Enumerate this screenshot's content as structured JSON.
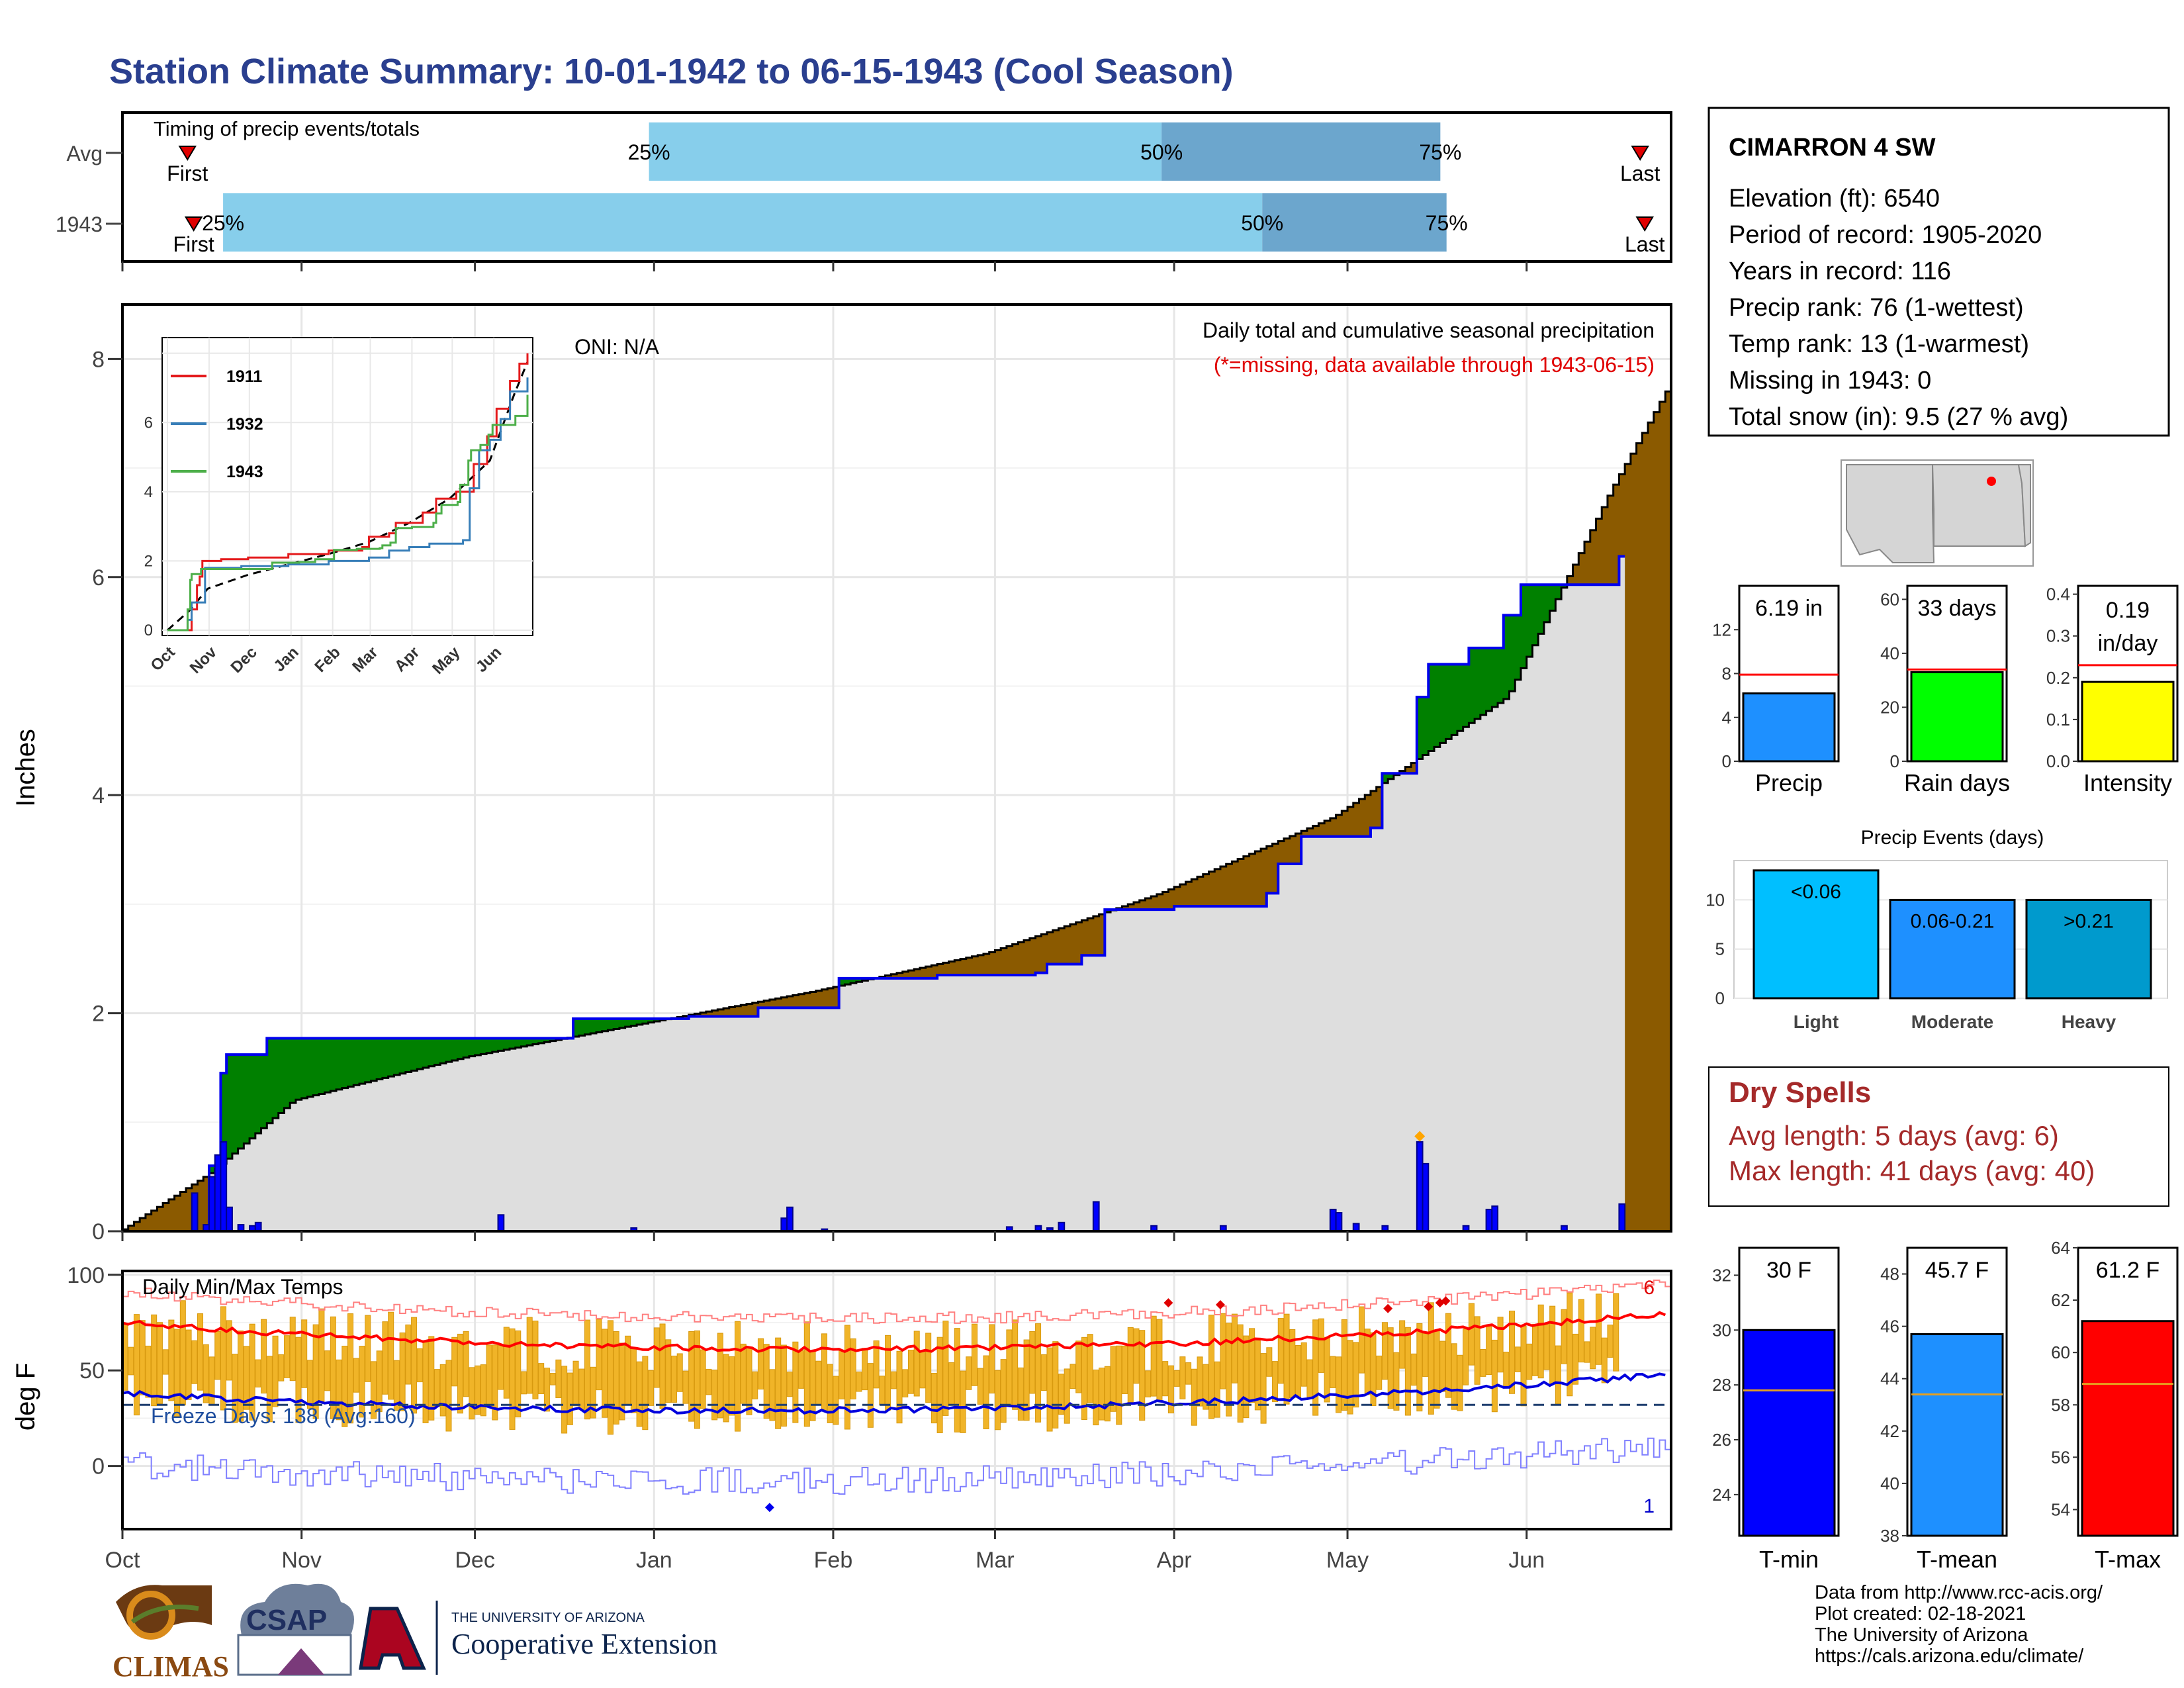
{
  "title": "Station Climate Summary: 10-01-1942 to 06-15-1943 (Cool Season)",
  "timing": {
    "label": "Timing of precip events/totals",
    "rows": [
      {
        "name": "Avg",
        "first_frac": 0.042,
        "p25_frac": 0.34,
        "p50_frac": 0.671,
        "p75_frac": 0.851,
        "last_frac": 0.98
      },
      {
        "name": "1943",
        "first_frac": 0.046,
        "p25_frac": 0.065,
        "p50_frac": 0.736,
        "p75_frac": 0.855,
        "last_frac": 0.983
      }
    ],
    "first_label": "First",
    "last_label": "Last",
    "pct25": "25%",
    "pct50": "50%",
    "pct75": "75%"
  },
  "station_box": {
    "name": "CIMARRON 4 SW",
    "lines": [
      "Elevation (ft): 6540",
      "Period of record: 1905-2020",
      "Years in record: 116",
      "Precip rank: 76 (1-wettest)",
      "Temp rank: 13 (1-warmest)",
      "Missing in 1943: 0",
      "Total snow (in): 9.5 (27 % avg)"
    ]
  },
  "precip_panel": {
    "title": "Daily total and cumulative seasonal precipitation",
    "subtitle": "(*=missing, data available through 1943-06-15)",
    "oni": "ONI: N/A",
    "ylabel": "Inches",
    "inset_legend": [
      "1911",
      "1932",
      "1943"
    ]
  },
  "temp_panel": {
    "label": "Daily Min/Max Temps",
    "freeze": "Freeze Days: 138 (Avg:160)",
    "ylabel": "deg F",
    "count_hi": "6",
    "count_lo": "1"
  },
  "months": [
    "Oct",
    "Nov",
    "Dec",
    "Jan",
    "Feb",
    "Mar",
    "Apr",
    "May",
    "Jun"
  ],
  "inset_months": [
    "Oct",
    "Nov",
    "Dec",
    "Jan",
    "Feb",
    "Mar",
    "Apr",
    "May",
    "Jun"
  ],
  "mini_bars": [
    {
      "label": "Precip",
      "value_text": "6.19 in",
      "value": 6.19,
      "avg": 7.9,
      "max": 16,
      "ticks": [
        0,
        4,
        8,
        12
      ],
      "color": "#1e90ff"
    },
    {
      "label": "Rain days",
      "value_text": "33 days",
      "value": 33,
      "avg": 34,
      "max": 65,
      "ticks": [
        0,
        20,
        40,
        60
      ],
      "color": "#00ff00"
    },
    {
      "label": "Intensity",
      "value_text": "0.19 in/day",
      "value": 0.19,
      "avg": 0.23,
      "max": 0.42,
      "ticks": [
        0.0,
        0.1,
        0.2,
        0.3,
        0.4
      ],
      "color": "#ffff00"
    }
  ],
  "events": {
    "title": "Precip Events (days)",
    "bars": [
      {
        "label": "Light",
        "text": "<0.06",
        "value": 13,
        "color": "#00bfff"
      },
      {
        "label": "Moderate",
        "text": "0.06-0.21",
        "value": 10,
        "color": "#1e90ff"
      },
      {
        "label": "Heavy",
        "text": ">0.21",
        "value": 10,
        "color": "#009acd"
      }
    ],
    "ticks": [
      0,
      5,
      10
    ]
  },
  "dry_spells": {
    "title": "Dry Spells",
    "avg": "Avg length: 5 days (avg: 6)",
    "max": "Max length: 41 days (avg: 40)"
  },
  "temp_bars": [
    {
      "label": "T-min",
      "value_text": "30 F",
      "value": 30,
      "avg": 27.8,
      "ymin": 22.5,
      "ymax": 33,
      "ticks": [
        24,
        26,
        28,
        30,
        32
      ],
      "color": "#0000ff"
    },
    {
      "label": "T-mean",
      "value_text": "45.7 F",
      "value": 45.7,
      "avg": 43.4,
      "ymin": 38,
      "ymax": 49,
      "ticks": [
        38,
        40,
        42,
        44,
        46,
        48
      ],
      "color": "#1e90ff"
    },
    {
      "label": "T-max",
      "value_text": "61.2 F",
      "value": 61.2,
      "avg": 58.8,
      "ymin": 53,
      "ymax": 64,
      "ticks": [
        54,
        56,
        58,
        60,
        62,
        64
      ],
      "color": "#ff0000"
    }
  ],
  "footer": [
    "Data from http://www.rcc-acis.org/",
    "Plot created: 02-18-2021",
    "The University of Arizona",
    "https://cals.arizona.edu/climate/"
  ],
  "logos": {
    "climas": "CLIMAS",
    "csap": "CSAP",
    "ua_small": "THE UNIVERSITY OF ARIZONA",
    "coop": "Cooperative Extension"
  },
  "chart_data": {
    "type": "area",
    "title": "Daily total and cumulative seasonal precipitation",
    "ylabel": "Inches",
    "ylim": [
      0,
      8.5
    ],
    "x_dates": [
      "1942-10-01",
      "1943-06-15"
    ],
    "cum_1943": [
      [
        0,
        0
      ],
      [
        15,
        0.6
      ],
      [
        17,
        1.45
      ],
      [
        18,
        1.62
      ],
      [
        24,
        1.62
      ],
      [
        25,
        1.77
      ],
      [
        75,
        1.77
      ],
      [
        78,
        1.95
      ],
      [
        98,
        1.97
      ],
      [
        110,
        2.05
      ],
      [
        124,
        2.32
      ],
      [
        141,
        2.35
      ],
      [
        158,
        2.37
      ],
      [
        160,
        2.45
      ],
      [
        166,
        2.53
      ],
      [
        170,
        2.95
      ],
      [
        182,
        2.98
      ],
      [
        198,
        3.1
      ],
      [
        200,
        3.37
      ],
      [
        204,
        3.62
      ],
      [
        216,
        3.7
      ],
      [
        218,
        4.2
      ],
      [
        224,
        4.9
      ],
      [
        226,
        5.2
      ],
      [
        233,
        5.35
      ],
      [
        239,
        5.65
      ],
      [
        242,
        5.93
      ],
      [
        259,
        6.19
      ]
    ],
    "cum_avg": [
      [
        0,
        0
      ],
      [
        16,
        0.55
      ],
      [
        30,
        1.2
      ],
      [
        60,
        1.6
      ],
      [
        90,
        1.9
      ],
      [
        120,
        2.2
      ],
      [
        150,
        2.55
      ],
      [
        180,
        3.1
      ],
      [
        210,
        3.8
      ],
      [
        240,
        4.9
      ],
      [
        258,
        6.8
      ],
      [
        268,
        7.75
      ]
    ],
    "daily_1943": [
      [
        12,
        0.35
      ],
      [
        14,
        0.06
      ],
      [
        15,
        0.5
      ],
      [
        16,
        0.7
      ],
      [
        17,
        0.82
      ],
      [
        18,
        0.22
      ],
      [
        20,
        0.06
      ],
      [
        22,
        0.05
      ],
      [
        23,
        0.08
      ],
      [
        65,
        0.15
      ],
      [
        88,
        0.03
      ],
      [
        114,
        0.12
      ],
      [
        115,
        0.22
      ],
      [
        121,
        0.02
      ],
      [
        153,
        0.04
      ],
      [
        158,
        0.05
      ],
      [
        160,
        0.03
      ],
      [
        162,
        0.08
      ],
      [
        168,
        0.27
      ],
      [
        178,
        0.05
      ],
      [
        190,
        0.05
      ],
      [
        209,
        0.2
      ],
      [
        210,
        0.17
      ],
      [
        213,
        0.07
      ],
      [
        218,
        0.05
      ],
      [
        224,
        0.82
      ],
      [
        225,
        0.62
      ],
      [
        232,
        0.05
      ],
      [
        236,
        0.2
      ],
      [
        237,
        0.23
      ],
      [
        249,
        0.05
      ],
      [
        259,
        0.25
      ]
    ],
    "inset": {
      "series": [
        {
          "name": "1911"
        },
        {
          "name": "1932"
        },
        {
          "name": "1943"
        }
      ],
      "ylim": [
        0,
        8.5
      ],
      "yticks": [
        0,
        2,
        4,
        6,
        8
      ]
    },
    "temps": {
      "ylim": [
        -33,
        102
      ],
      "yticks": [
        0,
        50,
        100
      ],
      "freeze_line": 32,
      "avg_max_start": 75,
      "avg_max_mid": 45,
      "avg_max_end": 80,
      "avg_min_start": 38,
      "avg_min_mid": 16,
      "avg_min_end": 48
    }
  }
}
